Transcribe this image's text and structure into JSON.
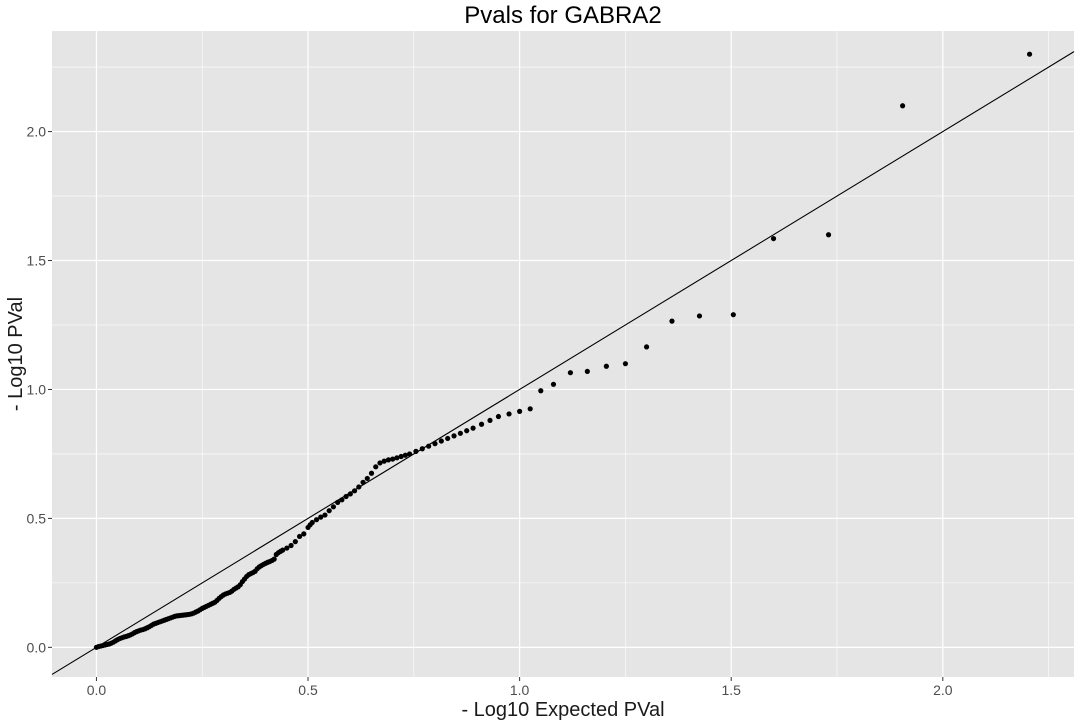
{
  "chart_data": {
    "type": "scatter",
    "title": "Pvals for GABRA2",
    "xlabel": "- Log10 Expected PVal",
    "ylabel": "- Log10 PVal",
    "xlim": [
      -0.105,
      2.31
    ],
    "ylim": [
      -0.115,
      2.39
    ],
    "xticks": [
      0.0,
      0.5,
      1.0,
      1.5,
      2.0
    ],
    "xtick_labels": [
      "0.0",
      "0.5",
      "1.0",
      "1.5",
      "2.0"
    ],
    "yticks": [
      0.0,
      0.5,
      1.0,
      1.5,
      2.0
    ],
    "ytick_labels": [
      "0.0",
      "0.5",
      "1.0",
      "1.5",
      "2.0"
    ],
    "grid": true,
    "reference_line": {
      "slope": 1,
      "intercept": 0
    },
    "colors": {
      "panel": "#e5e5e5",
      "grid": "#ffffff",
      "points": "#000000",
      "line": "#000000"
    },
    "points": [
      [
        0.0,
        0.0
      ],
      [
        0.005,
        0.003
      ],
      [
        0.01,
        0.005
      ],
      [
        0.015,
        0.007
      ],
      [
        0.02,
        0.009
      ],
      [
        0.025,
        0.011
      ],
      [
        0.03,
        0.013
      ],
      [
        0.035,
        0.016
      ],
      [
        0.04,
        0.02
      ],
      [
        0.045,
        0.025
      ],
      [
        0.05,
        0.03
      ],
      [
        0.055,
        0.034
      ],
      [
        0.06,
        0.037
      ],
      [
        0.065,
        0.04
      ],
      [
        0.07,
        0.042
      ],
      [
        0.075,
        0.045
      ],
      [
        0.08,
        0.048
      ],
      [
        0.085,
        0.052
      ],
      [
        0.09,
        0.057
      ],
      [
        0.095,
        0.061
      ],
      [
        0.1,
        0.064
      ],
      [
        0.105,
        0.067
      ],
      [
        0.11,
        0.069
      ],
      [
        0.115,
        0.072
      ],
      [
        0.12,
        0.076
      ],
      [
        0.125,
        0.08
      ],
      [
        0.13,
        0.085
      ],
      [
        0.135,
        0.09
      ],
      [
        0.14,
        0.093
      ],
      [
        0.145,
        0.096
      ],
      [
        0.15,
        0.099
      ],
      [
        0.155,
        0.102
      ],
      [
        0.16,
        0.105
      ],
      [
        0.165,
        0.108
      ],
      [
        0.17,
        0.111
      ],
      [
        0.175,
        0.114
      ],
      [
        0.18,
        0.117
      ],
      [
        0.185,
        0.12
      ],
      [
        0.19,
        0.122
      ],
      [
        0.195,
        0.123
      ],
      [
        0.2,
        0.124
      ],
      [
        0.205,
        0.125
      ],
      [
        0.21,
        0.126
      ],
      [
        0.215,
        0.127
      ],
      [
        0.22,
        0.128
      ],
      [
        0.225,
        0.13
      ],
      [
        0.23,
        0.133
      ],
      [
        0.235,
        0.137
      ],
      [
        0.24,
        0.141
      ],
      [
        0.245,
        0.146
      ],
      [
        0.25,
        0.151
      ],
      [
        0.255,
        0.155
      ],
      [
        0.26,
        0.159
      ],
      [
        0.265,
        0.163
      ],
      [
        0.27,
        0.167
      ],
      [
        0.275,
        0.171
      ],
      [
        0.28,
        0.175
      ],
      [
        0.285,
        0.182
      ],
      [
        0.29,
        0.19
      ],
      [
        0.295,
        0.197
      ],
      [
        0.3,
        0.203
      ],
      [
        0.305,
        0.207
      ],
      [
        0.31,
        0.21
      ],
      [
        0.315,
        0.213
      ],
      [
        0.32,
        0.218
      ],
      [
        0.325,
        0.225
      ],
      [
        0.33,
        0.23
      ],
      [
        0.335,
        0.235
      ],
      [
        0.34,
        0.243
      ],
      [
        0.345,
        0.255
      ],
      [
        0.35,
        0.265
      ],
      [
        0.355,
        0.275
      ],
      [
        0.36,
        0.282
      ],
      [
        0.365,
        0.286
      ],
      [
        0.37,
        0.29
      ],
      [
        0.375,
        0.295
      ],
      [
        0.38,
        0.305
      ],
      [
        0.385,
        0.312
      ],
      [
        0.39,
        0.317
      ],
      [
        0.395,
        0.322
      ],
      [
        0.4,
        0.326
      ],
      [
        0.405,
        0.33
      ],
      [
        0.41,
        0.333
      ],
      [
        0.415,
        0.337
      ],
      [
        0.42,
        0.342
      ],
      [
        0.425,
        0.36
      ],
      [
        0.43,
        0.367
      ],
      [
        0.435,
        0.372
      ],
      [
        0.44,
        0.377
      ],
      [
        0.45,
        0.385
      ],
      [
        0.46,
        0.395
      ],
      [
        0.47,
        0.41
      ],
      [
        0.48,
        0.43
      ],
      [
        0.49,
        0.44
      ],
      [
        0.5,
        0.465
      ],
      [
        0.505,
        0.475
      ],
      [
        0.51,
        0.484
      ],
      [
        0.52,
        0.495
      ],
      [
        0.53,
        0.505
      ],
      [
        0.54,
        0.513
      ],
      [
        0.55,
        0.53
      ],
      [
        0.56,
        0.545
      ],
      [
        0.57,
        0.562
      ],
      [
        0.58,
        0.572
      ],
      [
        0.59,
        0.585
      ],
      [
        0.6,
        0.595
      ],
      [
        0.61,
        0.607
      ],
      [
        0.62,
        0.622
      ],
      [
        0.63,
        0.64
      ],
      [
        0.64,
        0.655
      ],
      [
        0.65,
        0.675
      ],
      [
        0.66,
        0.7
      ],
      [
        0.67,
        0.715
      ],
      [
        0.68,
        0.722
      ],
      [
        0.69,
        0.727
      ],
      [
        0.7,
        0.73
      ],
      [
        0.71,
        0.735
      ],
      [
        0.72,
        0.74
      ],
      [
        0.73,
        0.745
      ],
      [
        0.74,
        0.75
      ],
      [
        0.755,
        0.76
      ],
      [
        0.77,
        0.77
      ],
      [
        0.785,
        0.78
      ],
      [
        0.8,
        0.79
      ],
      [
        0.815,
        0.8
      ],
      [
        0.83,
        0.81
      ],
      [
        0.845,
        0.82
      ],
      [
        0.86,
        0.83
      ],
      [
        0.875,
        0.84
      ],
      [
        0.89,
        0.85
      ],
      [
        0.91,
        0.865
      ],
      [
        0.93,
        0.88
      ],
      [
        0.95,
        0.895
      ],
      [
        0.975,
        0.905
      ],
      [
        1.0,
        0.915
      ],
      [
        1.025,
        0.925
      ],
      [
        1.05,
        0.995
      ],
      [
        1.08,
        1.02
      ],
      [
        1.12,
        1.065
      ],
      [
        1.16,
        1.07
      ],
      [
        1.205,
        1.09
      ],
      [
        1.25,
        1.1
      ],
      [
        1.3,
        1.165
      ],
      [
        1.36,
        1.265
      ],
      [
        1.425,
        1.285
      ],
      [
        1.505,
        1.29
      ],
      [
        1.6,
        1.585
      ],
      [
        1.73,
        1.6
      ],
      [
        1.905,
        2.1
      ],
      [
        2.205,
        2.3
      ]
    ]
  }
}
